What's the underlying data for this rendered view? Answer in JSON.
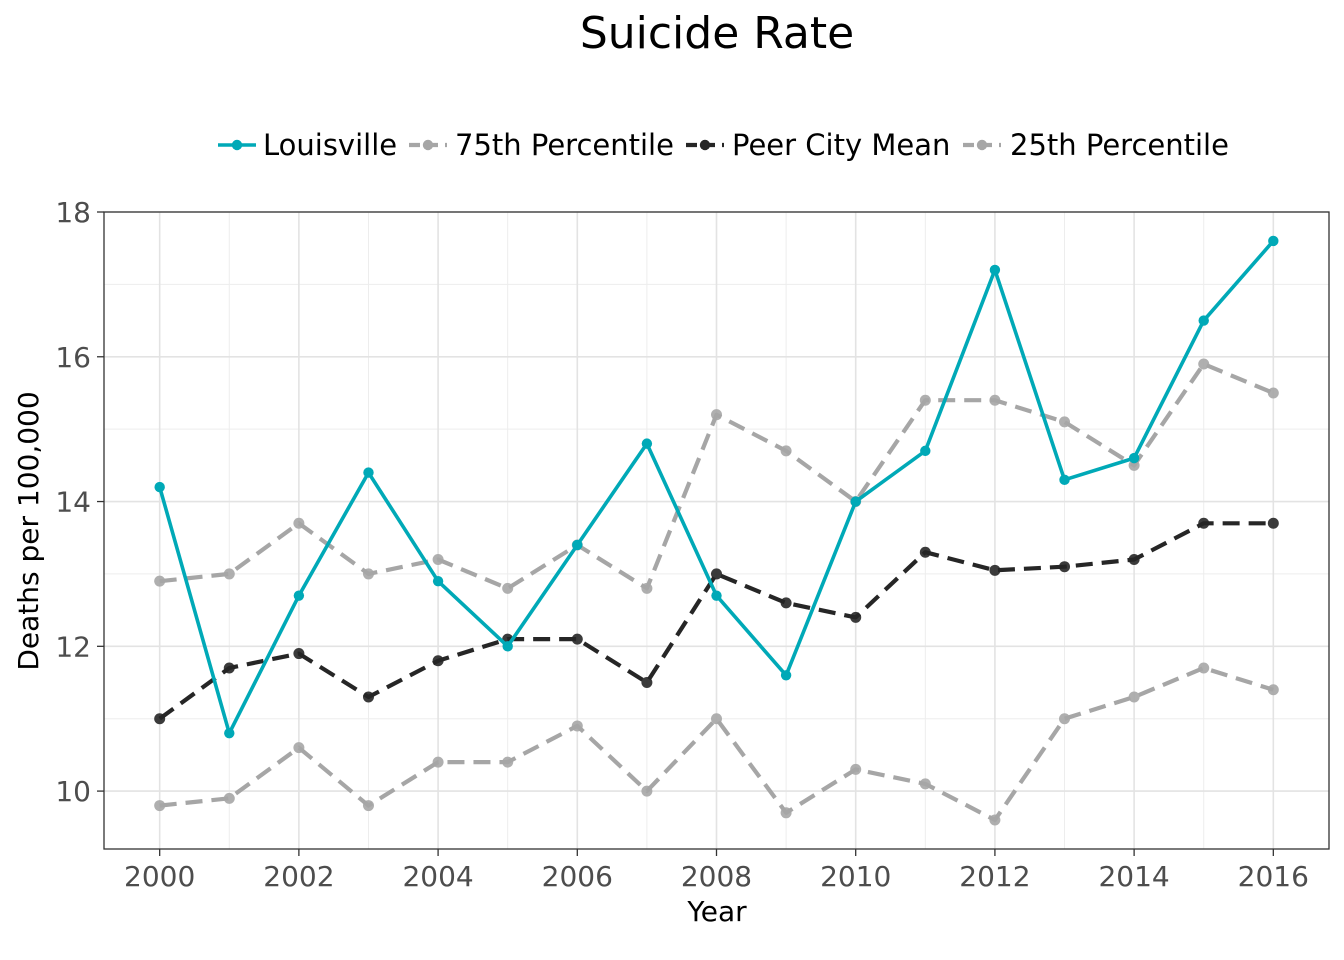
{
  "chart_data": {
    "type": "line",
    "title": "Suicide Rate",
    "xlabel": "Year",
    "ylabel": "Deaths per 100,000",
    "xlim": [
      1999.2,
      2016.8
    ],
    "ylim": [
      9.2,
      18
    ],
    "x_ticks": [
      "2000",
      "2002",
      "2004",
      "2006",
      "2008",
      "2010",
      "2012",
      "2014",
      "2016"
    ],
    "y_ticks": [
      "10",
      "12",
      "14",
      "16",
      "18"
    ],
    "grid": true,
    "legend_position": "top",
    "x": [
      2000,
      2001,
      2002,
      2003,
      2004,
      2005,
      2006,
      2007,
      2008,
      2009,
      2010,
      2011,
      2012,
      2013,
      2014,
      2015,
      2016
    ],
    "series": [
      {
        "name": "Louisville",
        "color": "#00a9b7",
        "line": "solid",
        "values": [
          14.2,
          10.8,
          12.7,
          14.4,
          12.9,
          12.0,
          13.4,
          14.8,
          12.7,
          11.6,
          14.0,
          14.7,
          17.2,
          14.3,
          14.6,
          16.5,
          17.6
        ]
      },
      {
        "name": "75th Percentile",
        "color": "#a6a6a6",
        "line": "dashed",
        "values": [
          12.9,
          13.0,
          13.7,
          13.0,
          13.2,
          12.8,
          13.4,
          12.8,
          15.2,
          14.7,
          14.0,
          15.4,
          15.4,
          15.1,
          14.5,
          15.9,
          15.5
        ]
      },
      {
        "name": "Peer City Mean",
        "color": "#262626",
        "line": "dashed",
        "values": [
          11.0,
          11.7,
          11.9,
          11.3,
          11.8,
          12.1,
          12.1,
          11.5,
          13.0,
          12.6,
          12.4,
          13.3,
          13.05,
          13.1,
          13.2,
          13.7,
          13.7
        ]
      },
      {
        "name": "25th Percentile",
        "color": "#a6a6a6",
        "line": "dashed",
        "values": [
          9.8,
          9.9,
          10.6,
          9.8,
          10.4,
          10.4,
          10.9,
          10.0,
          11.0,
          9.7,
          10.3,
          10.1,
          9.6,
          11.0,
          11.3,
          11.7,
          11.4
        ]
      }
    ]
  }
}
